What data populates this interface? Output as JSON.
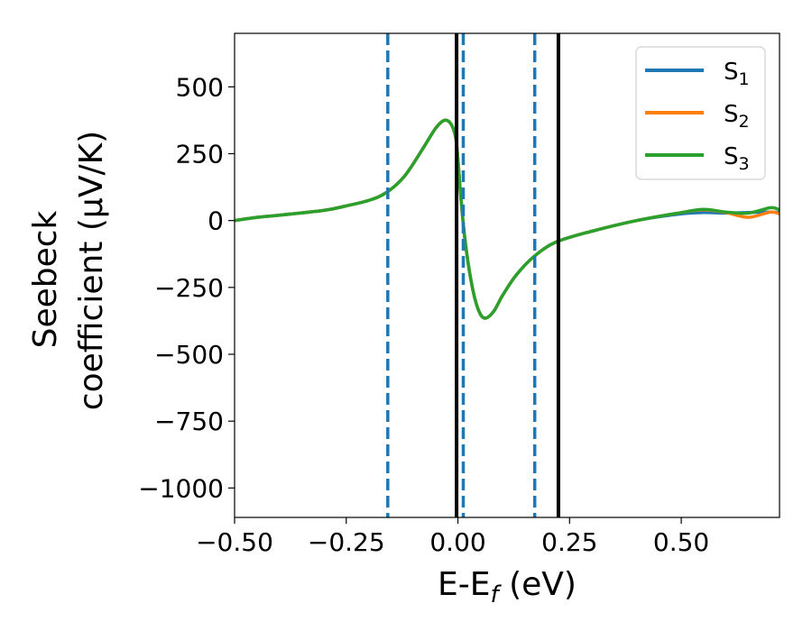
{
  "chart_data": {
    "type": "line",
    "xlabel": "E-E_f (eV)",
    "ylabel_line1": "Seebeck",
    "ylabel_line2": "coefficient (μV/K)",
    "xlim": [
      -0.5,
      0.72
    ],
    "ylim": [
      -1110,
      700
    ],
    "xticks": [
      -0.5,
      -0.25,
      0.0,
      0.25,
      0.5
    ],
    "xtick_labels": [
      "−0.50",
      "−0.25",
      "0.00",
      "0.25",
      "0.50"
    ],
    "yticks": [
      500,
      250,
      0,
      -250,
      -500,
      -750,
      -1000
    ],
    "ytick_labels": [
      "500",
      "250",
      "0",
      "−250",
      "−500",
      "−750",
      "−1000"
    ],
    "grid": false,
    "legend_position": "top-right",
    "series": [
      {
        "name": "S",
        "subscript": "1",
        "color": "#1f77b4",
        "x": [
          -0.5,
          -0.45,
          -0.4,
          -0.3,
          -0.25,
          -0.2,
          -0.16,
          -0.12,
          -0.08,
          -0.05,
          -0.03,
          -0.015,
          -0.005,
          0.0,
          0.005,
          0.015,
          0.03,
          0.045,
          0.06,
          0.08,
          0.1,
          0.13,
          0.17,
          0.22,
          0.3,
          0.4,
          0.5,
          0.55,
          0.6,
          0.65,
          0.7,
          0.72
        ],
        "y": [
          0,
          12,
          20,
          38,
          55,
          75,
          105,
          165,
          265,
          345,
          375,
          360,
          310,
          230,
          120,
          -60,
          -230,
          -330,
          -365,
          -340,
          -280,
          -205,
          -135,
          -80,
          -40,
          0,
          25,
          30,
          28,
          30,
          32,
          30
        ]
      },
      {
        "name": "S",
        "subscript": "2",
        "color": "#ff7f0e",
        "x": [
          -0.5,
          -0.45,
          -0.4,
          -0.3,
          -0.25,
          -0.2,
          -0.16,
          -0.12,
          -0.08,
          -0.05,
          -0.03,
          -0.015,
          -0.005,
          0.0,
          0.005,
          0.015,
          0.03,
          0.045,
          0.06,
          0.08,
          0.1,
          0.13,
          0.17,
          0.22,
          0.3,
          0.4,
          0.5,
          0.55,
          0.6,
          0.65,
          0.7,
          0.72
        ],
        "y": [
          0,
          12,
          20,
          38,
          55,
          75,
          105,
          165,
          265,
          345,
          375,
          360,
          310,
          230,
          120,
          -60,
          -230,
          -330,
          -365,
          -340,
          -280,
          -205,
          -135,
          -80,
          -40,
          0,
          30,
          40,
          30,
          12,
          32,
          25
        ]
      },
      {
        "name": "S",
        "subscript": "3",
        "color": "#2ca02c",
        "x": [
          -0.5,
          -0.45,
          -0.4,
          -0.3,
          -0.25,
          -0.2,
          -0.16,
          -0.12,
          -0.08,
          -0.05,
          -0.03,
          -0.015,
          -0.005,
          0.0,
          0.005,
          0.015,
          0.03,
          0.045,
          0.06,
          0.08,
          0.1,
          0.13,
          0.17,
          0.22,
          0.3,
          0.4,
          0.5,
          0.55,
          0.6,
          0.65,
          0.7,
          0.72
        ],
        "y": [
          0,
          12,
          20,
          38,
          55,
          75,
          105,
          165,
          265,
          345,
          375,
          360,
          310,
          230,
          120,
          -60,
          -230,
          -330,
          -365,
          -340,
          -280,
          -205,
          -135,
          -80,
          -40,
          0,
          30,
          42,
          32,
          28,
          48,
          40
        ]
      }
    ],
    "vlines": [
      {
        "x": -0.157,
        "style": "dashed",
        "color": "#1f77b4"
      },
      {
        "x": 0.012,
        "style": "dashed",
        "color": "#1f77b4"
      },
      {
        "x": 0.172,
        "style": "dashed",
        "color": "#1f77b4"
      },
      {
        "x": -0.003,
        "style": "solid",
        "color": "#000000"
      },
      {
        "x": 0.225,
        "style": "solid",
        "color": "#000000"
      }
    ]
  }
}
